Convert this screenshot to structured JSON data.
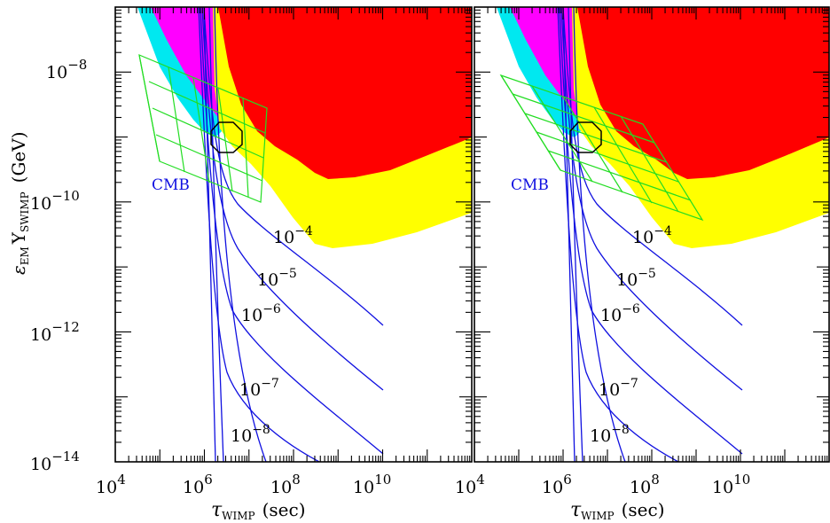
{
  "chart_data": [
    {
      "type": "contour",
      "panel": "left",
      "xscale": "log",
      "yscale": "log",
      "xlim": [
        10000.0,
        1000000000000.0
      ],
      "ylim": [
        1e-14,
        1e-07
      ],
      "xlabel_symbol": "τ",
      "xlabel_sub": "WIMP",
      "xlabel_rest": "(sec)",
      "ylabel_eps": "ε",
      "ylabel_eps_sub": "EM",
      "ylabel_Y": "Y",
      "ylabel_Y_sub": "SWIMP",
      "ylabel_unit": "(GeV)",
      "x_ticks": [
        {
          "base": "10",
          "exp": "4",
          "value": 10000.0
        },
        {
          "base": "10",
          "exp": "6",
          "value": 1000000.0
        },
        {
          "base": "10",
          "exp": "8",
          "value": 100000000.0
        },
        {
          "base": "10",
          "exp": "10",
          "value": 10000000000.0
        }
      ],
      "y_ticks": [
        {
          "base": "10",
          "exp": "−8",
          "value": 1e-08
        },
        {
          "base": "10",
          "exp": "−10",
          "value": 1e-10
        },
        {
          "base": "10",
          "exp": "−12",
          "value": 1e-12
        },
        {
          "base": "10",
          "exp": "−14",
          "value": 1e-14
        }
      ],
      "region_label": "CMB",
      "contour_labels": [
        {
          "base": "10",
          "exp": "−4"
        },
        {
          "base": "10",
          "exp": "−5"
        },
        {
          "base": "10",
          "exp": "−6"
        },
        {
          "base": "10",
          "exp": "−7"
        },
        {
          "base": "10",
          "exp": "−8"
        }
      ],
      "colors": {
        "red": "#ff0000",
        "yellow": "#ffff00",
        "magenta": "#ff00ff",
        "cyan": "#00e8f0",
        "contours": "#1010e0",
        "grid": "#22dd22",
        "octagon": "#000000"
      }
    },
    {
      "type": "contour",
      "panel": "right",
      "xscale": "log",
      "yscale": "log",
      "xlim": [
        10000.0,
        1000000000000.0
      ],
      "ylim": [
        1e-14,
        1e-07
      ],
      "xlabel_symbol": "τ",
      "xlabel_sub": "WIMP",
      "xlabel_rest": "(sec)",
      "x_ticks": [
        {
          "base": "10",
          "exp": "4",
          "value": 10000.0
        },
        {
          "base": "10",
          "exp": "6",
          "value": 1000000.0
        },
        {
          "base": "10",
          "exp": "8",
          "value": 100000000.0
        },
        {
          "base": "10",
          "exp": "10",
          "value": 10000000000.0
        }
      ],
      "region_label": "CMB",
      "contour_labels": [
        {
          "base": "10",
          "exp": "−4"
        },
        {
          "base": "10",
          "exp": "−5"
        },
        {
          "base": "10",
          "exp": "−6"
        },
        {
          "base": "10",
          "exp": "−7"
        },
        {
          "base": "10",
          "exp": "−8"
        }
      ]
    }
  ]
}
